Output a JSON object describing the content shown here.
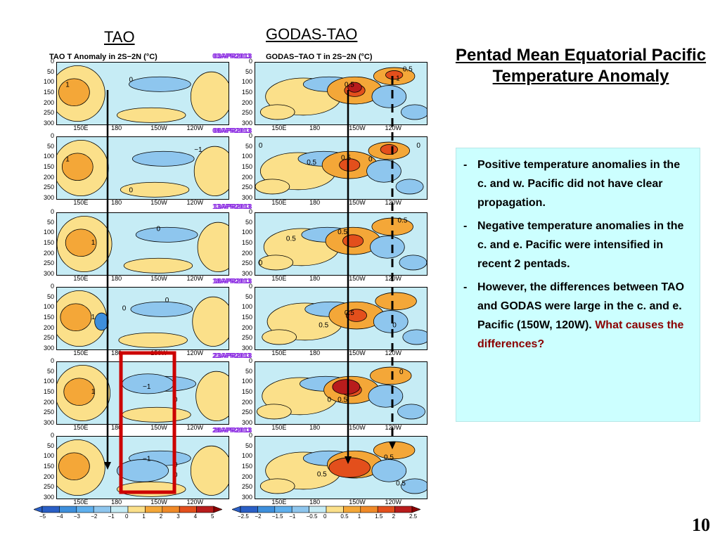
{
  "headers": {
    "left": "TAO",
    "right": "GODAS-TAO"
  },
  "left_title": "TAO T Anomaly in 2S−2N (°C)",
  "right_title": "GODAS−TAO T in 2S~2N (°C)",
  "dates": [
    "03APR2013",
    "08APR2013",
    "13APR2013",
    "18APR2013",
    "23APR2013",
    "28APR2013"
  ],
  "main_title": "Pentad Mean Equatorial Pacific Temperature Anomaly",
  "notes": [
    {
      "text": "Positive temperature anomalies in the c. and w. Pacific did not have clear propagation.",
      "highlight": ""
    },
    {
      "text": "Negative temperature anomalies in the c. and e. Pacific were intensified in recent 2 pentads.",
      "highlight": ""
    },
    {
      "text": "However, the differences between TAO and GODAS were large in the c. and e. Pacific (150W, 120W). ",
      "highlight": "What causes the differences?"
    }
  ],
  "page_number": "10",
  "colors": {
    "ocean_bg": "#c6ecf5",
    "warm1": "#fbe08a",
    "warm2": "#f4a738",
    "warm3": "#e34f1c",
    "warm4": "#b81c1c",
    "cold1": "#8ec6ee",
    "cold2": "#3e8fdc",
    "highlight_box": "#cc0000",
    "note_bg": "#ccffff",
    "note_highlight": "#8b0000"
  },
  "chart_data": [
    {
      "type": "heatmap",
      "title": "TAO T Anomaly in 2S−2N (°C)",
      "ylabel": "",
      "y_ticks": [
        "0",
        "50",
        "100",
        "150",
        "200",
        "250",
        "300"
      ],
      "x_ticks": [
        "150E",
        "180",
        "150W",
        "120W"
      ],
      "ylim": [
        0,
        300
      ],
      "panels": [
        "03APR2013",
        "08APR2013",
        "13APR2013",
        "18APR2013",
        "23APR2013",
        "28APR2013"
      ],
      "contour_labels": [
        [
          "1",
          "0"
        ],
        [
          "1",
          "−1",
          "0"
        ],
        [
          "0",
          "1"
        ],
        [
          "0",
          "1",
          "0"
        ],
        [
          "1",
          "−1",
          "0"
        ],
        [
          "−1",
          "0",
          "0"
        ]
      ],
      "colorbar_ticks": [
        "−5",
        "−4",
        "−3",
        "−2",
        "−1",
        "0",
        "1",
        "2",
        "3",
        "4",
        "5"
      ]
    },
    {
      "type": "heatmap",
      "title": "GODAS−TAO T in 2S~2N (°C)",
      "ylabel": "",
      "y_ticks": [
        "0",
        "50",
        "100",
        "150",
        "200",
        "250",
        "300"
      ],
      "x_ticks": [
        "150E",
        "180",
        "150W",
        "120W"
      ],
      "ylim": [
        0,
        300
      ],
      "panels": [
        "03APR2013",
        "08APR2013",
        "13APR2013",
        "18APR2013",
        "23APR2013",
        "28APR2013"
      ],
      "contour_labels": [
        [
          "0.5",
          "1",
          "0.5"
        ],
        [
          "0",
          "0.5",
          "0.5",
          "0",
          "0"
        ],
        [
          "0.5",
          "0.5",
          "0.5",
          "0"
        ],
        [
          "0.5",
          "0.5",
          "0"
        ],
        [
          "0",
          "0.5",
          "0"
        ],
        [
          "0.5",
          "0.5",
          "0.5"
        ]
      ],
      "colorbar_ticks": [
        "−2.5",
        "−2",
        "−1.5",
        "−1",
        "−0.5",
        "0",
        "0.5",
        "1",
        "1.5",
        "2",
        "2.5"
      ]
    }
  ]
}
